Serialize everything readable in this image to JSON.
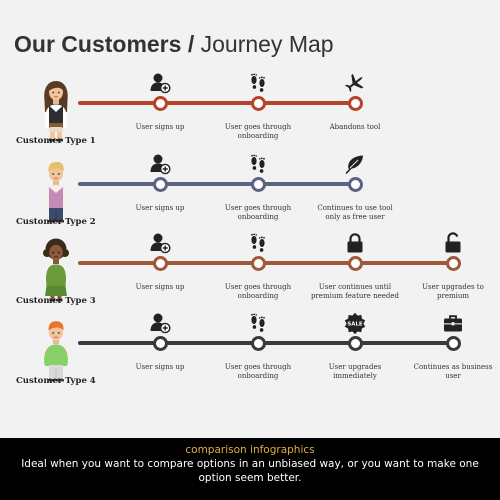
{
  "title": {
    "bold": "Our Customers",
    "separator": "/",
    "light": "Journey Map"
  },
  "footer": {
    "title": "comparison infographics",
    "text": "Ideal when you want to compare options in an unbiased way, or you want to make one option seem better."
  },
  "colors": {
    "row1": "#b5452a",
    "row2": "#5b6380",
    "row3": "#a0583a",
    "row4": "#3a3a3a",
    "footer_title": "#e0b03c"
  },
  "rows": [
    {
      "name": "Customer Type 1",
      "avatar": "woman-brown-hair-avatar",
      "steps": [
        {
          "icon": "user-add-icon",
          "label": "User signs up"
        },
        {
          "icon": "footsteps-icon",
          "label": "User goes through onboarding"
        },
        {
          "icon": "airplane-icon",
          "label": "Abandons tool"
        }
      ]
    },
    {
      "name": "Customer Type 2",
      "avatar": "man-blond-hair-avatar",
      "steps": [
        {
          "icon": "user-add-icon",
          "label": "User signs up"
        },
        {
          "icon": "footsteps-icon",
          "label": "User goes through onboarding"
        },
        {
          "icon": "leaf-icon",
          "label": "Continues to use tool only as free user"
        }
      ]
    },
    {
      "name": "Customer Type 3",
      "avatar": "woman-curly-hair-avatar",
      "steps": [
        {
          "icon": "user-add-icon",
          "label": "User signs up"
        },
        {
          "icon": "footsteps-icon",
          "label": "User goes through onboarding"
        },
        {
          "icon": "lock-closed-icon",
          "label": "User continues until premium feature needed"
        },
        {
          "icon": "lock-open-icon",
          "label": "User upgrades to premium"
        }
      ]
    },
    {
      "name": "Customer Type 4",
      "avatar": "man-orange-hair-avatar",
      "steps": [
        {
          "icon": "user-add-icon",
          "label": "User signs up"
        },
        {
          "icon": "footsteps-icon",
          "label": "User goes through onboarding"
        },
        {
          "icon": "sale-badge-icon",
          "label": "User upgrades immediately"
        },
        {
          "icon": "briefcase-icon",
          "label": "Continues as business user"
        }
      ]
    }
  ]
}
